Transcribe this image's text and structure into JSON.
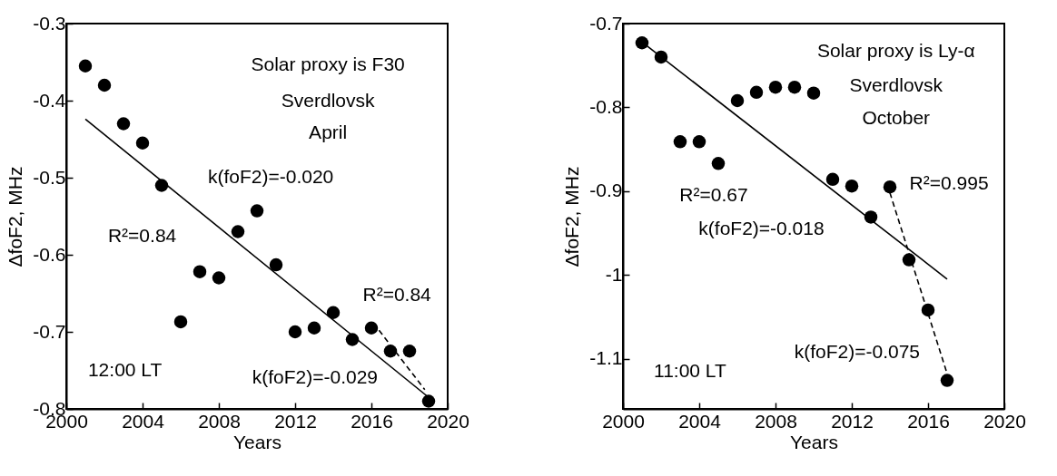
{
  "chart_data": [
    {
      "type": "scatter",
      "xlabel": "Years",
      "ylabel": "ΔfoF2, MHz",
      "xlim": [
        2000,
        2020
      ],
      "ylim": [
        -0.8,
        -0.3
      ],
      "xticks": [
        2000,
        2004,
        2008,
        2012,
        2016,
        2020
      ],
      "yticks": [
        -0.8,
        -0.7,
        -0.6,
        -0.5,
        -0.4,
        -0.3
      ],
      "grid": false,
      "series": [
        {
          "marker": "circle",
          "color": "#000000",
          "x": [
            2001,
            2002,
            2003,
            2004,
            2005,
            2006,
            2007,
            2008,
            2009,
            2010,
            2011,
            2012,
            2013,
            2014,
            2015,
            2016,
            2017,
            2018,
            2019
          ],
          "values": [
            -0.355,
            -0.38,
            -0.43,
            -0.455,
            -0.51,
            -0.687,
            -0.622,
            -0.63,
            -0.57,
            -0.543,
            -0.613,
            -0.7,
            -0.695,
            -0.675,
            -0.71,
            -0.695,
            -0.725,
            -0.725,
            -0.79
          ]
        },
        {
          "type": "line",
          "color": "#000000",
          "line_style": "solid",
          "x": [
            2001,
            2019
          ],
          "values": [
            -0.424,
            -0.785
          ]
        },
        {
          "type": "line",
          "color": "#000000",
          "line_style": "dashed",
          "x": [
            2016.4,
            2018.8
          ],
          "values": [
            -0.698,
            -0.775
          ]
        }
      ],
      "annotations": [
        "Solar proxy is F30",
        "Sverdlovsk",
        "April",
        "12:00 LT",
        "k(foF2)=-0.020",
        "R²=0.84",
        "R²=0.84",
        "k(foF2)=-0.029"
      ]
    },
    {
      "type": "scatter",
      "xlabel": "Years",
      "ylabel": "ΔfoF2, MHz",
      "xlim": [
        2000,
        2020
      ],
      "ylim": [
        -1.16,
        -0.7
      ],
      "xticks": [
        2000,
        2004,
        2008,
        2012,
        2016,
        2020
      ],
      "yticks": [
        -1.1,
        -1,
        -0.9,
        -0.8,
        -0.7
      ],
      "grid": false,
      "series": [
        {
          "marker": "circle",
          "color": "#000000",
          "x": [
            2001,
            2002,
            2003,
            2004,
            2005,
            2006,
            2007,
            2008,
            2009,
            2010,
            2011,
            2012,
            2013,
            2014,
            2015,
            2016,
            2017
          ],
          "values": [
            -0.723,
            -0.74,
            -0.841,
            -0.841,
            -0.867,
            -0.792,
            -0.782,
            -0.776,
            -0.776,
            -0.783,
            -0.886,
            -0.894,
            -0.931,
            -0.895,
            -0.982,
            -1.042,
            -1.126
          ]
        },
        {
          "type": "line",
          "color": "#000000",
          "line_style": "solid",
          "x": [
            2001,
            2017
          ],
          "values": [
            -0.722,
            -1.005
          ]
        },
        {
          "type": "line",
          "color": "#000000",
          "line_style": "dashed",
          "x": [
            2014,
            2017
          ],
          "values": [
            -0.902,
            -1.118
          ]
        }
      ],
      "annotations": [
        "Solar proxy is Ly-α",
        "Sverdlovsk",
        "October",
        "11:00 LT",
        "R²=0.67",
        "k(foF2)=-0.018",
        "R²=0.995",
        "k(foF2)=-0.075"
      ]
    }
  ]
}
